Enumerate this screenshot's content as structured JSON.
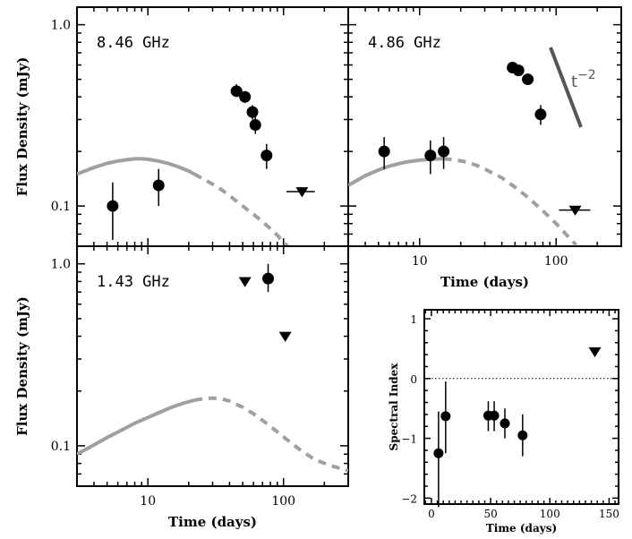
{
  "chart_data": [
    {
      "type": "scatter",
      "panel": "top-left",
      "scale": {
        "x": "log",
        "y": "log"
      },
      "xlim": [
        3,
        300
      ],
      "ylim": [
        0.06,
        1.25
      ],
      "ylabel": "Flux Density (mJy)",
      "label": "8.46 GHz",
      "y_ticks": [
        {
          "v": 0.1,
          "label": "0.1"
        },
        {
          "v": 1.0,
          "label": "1.0"
        }
      ],
      "x_ticks": [],
      "points": [
        {
          "x": 5.5,
          "y": 0.1,
          "ylo": 0.065,
          "yhi": 0.135
        },
        {
          "x": 12,
          "y": 0.13,
          "ylo": 0.1,
          "yhi": 0.16
        },
        {
          "x": 45,
          "y": 0.43,
          "ylo": 0.4,
          "yhi": 0.47
        },
        {
          "x": 52,
          "y": 0.4,
          "ylo": 0.37,
          "yhi": 0.43
        },
        {
          "x": 59,
          "y": 0.33,
          "ylo": 0.3,
          "yhi": 0.36
        },
        {
          "x": 62,
          "y": 0.28,
          "ylo": 0.25,
          "yhi": 0.31
        },
        {
          "x": 75,
          "y": 0.19,
          "ylo": 0.16,
          "yhi": 0.22
        }
      ],
      "upper_limits": [
        {
          "x": 137,
          "y": 0.12,
          "xlo": 105,
          "xhi": 170
        }
      ],
      "model_solid": [
        [
          3,
          0.15
        ],
        [
          4,
          0.163
        ],
        [
          5,
          0.172
        ],
        [
          6,
          0.177
        ],
        [
          7,
          0.18
        ],
        [
          8,
          0.182
        ],
        [
          9,
          0.182
        ],
        [
          10,
          0.181
        ],
        [
          12,
          0.177
        ],
        [
          14,
          0.172
        ],
        [
          17,
          0.164
        ],
        [
          20,
          0.156
        ],
        [
          22,
          0.15
        ]
      ],
      "model_dashed": [
        [
          22,
          0.15
        ],
        [
          26,
          0.14
        ],
        [
          30,
          0.132
        ],
        [
          35,
          0.123
        ],
        [
          40,
          0.114
        ],
        [
          50,
          0.1
        ],
        [
          60,
          0.09
        ],
        [
          70,
          0.082
        ],
        [
          80,
          0.075
        ],
        [
          90,
          0.069
        ],
        [
          100,
          0.063
        ],
        [
          110,
          0.059
        ]
      ]
    },
    {
      "type": "scatter",
      "panel": "top-right",
      "scale": {
        "x": "log",
        "y": "log"
      },
      "xlim": [
        3,
        300
      ],
      "ylim": [
        0.06,
        1.25
      ],
      "xlabel": "Time (days)",
      "label": "4.86 GHz",
      "annotation": "t",
      "annotation_exp": "−2",
      "x_ticks": [
        {
          "v": 10,
          "label": "10"
        },
        {
          "v": 100,
          "label": "100"
        }
      ],
      "y_ticks": [],
      "points": [
        {
          "x": 5.5,
          "y": 0.2,
          "ylo": 0.16,
          "yhi": 0.24
        },
        {
          "x": 12,
          "y": 0.19,
          "ylo": 0.15,
          "yhi": 0.23
        },
        {
          "x": 15,
          "y": 0.2,
          "ylo": 0.16,
          "yhi": 0.24
        },
        {
          "x": 48,
          "y": 0.58,
          "ylo": 0.55,
          "yhi": 0.61
        },
        {
          "x": 53,
          "y": 0.56,
          "ylo": 0.53,
          "yhi": 0.59
        },
        {
          "x": 62,
          "y": 0.5,
          "ylo": 0.47,
          "yhi": 0.53
        },
        {
          "x": 77,
          "y": 0.32,
          "ylo": 0.28,
          "yhi": 0.36
        }
      ],
      "upper_limits": [
        {
          "x": 138,
          "y": 0.095,
          "xlo": 105,
          "xhi": 178
        }
      ],
      "model_solid": [
        [
          3,
          0.13
        ],
        [
          4,
          0.147
        ],
        [
          5,
          0.158
        ],
        [
          6,
          0.166
        ],
        [
          7,
          0.171
        ],
        [
          8,
          0.175
        ],
        [
          10,
          0.179
        ],
        [
          12,
          0.181
        ],
        [
          14,
          0.182
        ],
        [
          15,
          0.182
        ]
      ],
      "model_dashed": [
        [
          15,
          0.182
        ],
        [
          18,
          0.18
        ],
        [
          22,
          0.175
        ],
        [
          26,
          0.168
        ],
        [
          30,
          0.16
        ],
        [
          40,
          0.143
        ],
        [
          50,
          0.127
        ],
        [
          60,
          0.114
        ],
        [
          70,
          0.103
        ],
        [
          80,
          0.094
        ],
        [
          100,
          0.08
        ],
        [
          120,
          0.069
        ],
        [
          140,
          0.061
        ]
      ]
    },
    {
      "type": "scatter",
      "panel": "bottom-left",
      "scale": {
        "x": "log",
        "y": "log"
      },
      "xlim": [
        3,
        300
      ],
      "ylim": [
        0.06,
        1.25
      ],
      "xlabel": "Time (days)",
      "ylabel": "Flux Density (mJy)",
      "label": "1.43 GHz",
      "x_ticks": [
        {
          "v": 10,
          "label": "10"
        },
        {
          "v": 100,
          "label": "100"
        }
      ],
      "y_ticks": [
        {
          "v": 0.1,
          "label": "0.1"
        },
        {
          "v": 1.0,
          "label": "1.0"
        }
      ],
      "points": [
        {
          "x": 77,
          "y": 0.83,
          "ylo": 0.7,
          "yhi": 1.0
        }
      ],
      "upper_limits": [
        {
          "x": 52,
          "y": 0.8
        },
        {
          "x": 103,
          "y": 0.4
        }
      ],
      "model_solid": [
        [
          3,
          0.09
        ],
        [
          4,
          0.101
        ],
        [
          5,
          0.111
        ],
        [
          6,
          0.119
        ],
        [
          8,
          0.133
        ],
        [
          10,
          0.143
        ],
        [
          12,
          0.152
        ],
        [
          15,
          0.163
        ],
        [
          18,
          0.171
        ],
        [
          22,
          0.178
        ]
      ],
      "model_dashed": [
        [
          22,
          0.178
        ],
        [
          26,
          0.182
        ],
        [
          30,
          0.183
        ],
        [
          35,
          0.181
        ],
        [
          40,
          0.176
        ],
        [
          50,
          0.163
        ],
        [
          60,
          0.15
        ],
        [
          70,
          0.138
        ],
        [
          80,
          0.128
        ],
        [
          100,
          0.112
        ],
        [
          130,
          0.096
        ],
        [
          170,
          0.084
        ],
        [
          220,
          0.078
        ],
        [
          300,
          0.073
        ]
      ]
    },
    {
      "type": "scatter",
      "panel": "bottom-right",
      "scale": {
        "x": "linear",
        "y": "linear"
      },
      "xlim": [
        -6,
        158
      ],
      "ylim": [
        -2.1,
        1.15
      ],
      "xlabel": "Time (days)",
      "ylabel": "Spectral Index",
      "reference_line": 0,
      "x_ticks": [
        {
          "v": 0,
          "label": "0"
        },
        {
          "v": 50,
          "label": "50"
        },
        {
          "v": 100,
          "label": "100"
        },
        {
          "v": 150,
          "label": "150"
        }
      ],
      "y_ticks": [
        {
          "v": 1,
          "label": "1"
        },
        {
          "v": 0,
          "label": "0"
        },
        {
          "v": -1,
          "label": "−1"
        },
        {
          "v": -2,
          "label": "−2"
        }
      ],
      "points": [
        {
          "x": 6,
          "y": -1.25,
          "ylo": -2.15,
          "yhi": -0.55
        },
        {
          "x": 12,
          "y": -0.63,
          "ylo": -1.25,
          "yhi": -0.05
        },
        {
          "x": 48,
          "y": -0.62,
          "ylo": -0.88,
          "yhi": -0.38
        },
        {
          "x": 53,
          "y": -0.62,
          "ylo": -0.88,
          "yhi": -0.38
        },
        {
          "x": 62,
          "y": -0.75,
          "ylo": -1.0,
          "yhi": -0.5
        },
        {
          "x": 77,
          "y": -0.95,
          "ylo": -1.3,
          "yhi": -0.6
        }
      ],
      "upper_limits": [
        {
          "x": 138,
          "y": 0.45,
          "inverted": true
        }
      ]
    }
  ]
}
